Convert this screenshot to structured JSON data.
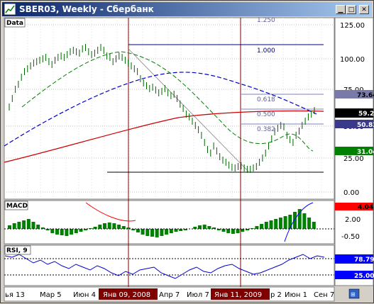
{
  "window": {
    "title": "SBER03, Weekly - Сбербанк",
    "icon": "chart-app-icon",
    "buttons": [
      "minimize",
      "maximize",
      "close"
    ]
  },
  "price_pane": {
    "label": "Data",
    "y_ticks": [
      "125.00",
      "100.00",
      "75.00",
      "50.00",
      "25.00",
      "0.00"
    ],
    "badges": [
      {
        "text": "73.64",
        "bg": "#7a7aa8",
        "fg": "#000000"
      },
      {
        "text": "59.20",
        "bg": "#000000",
        "fg": "#ffffff"
      },
      {
        "text": "50.83",
        "bg": "#3a3a8a",
        "fg": "#ffffff"
      },
      {
        "text": "31.04",
        "bg": "#008000",
        "fg": "#ffffff"
      }
    ],
    "fib_labels": [
      "1.250",
      "1.000",
      "0.618",
      "0.500",
      "0.382"
    ]
  },
  "macd_pane": {
    "label": "MACD",
    "y_ticks": [
      "2.00",
      "-0.50"
    ],
    "badges": [
      {
        "text": "4.04",
        "bg": "#ff0000",
        "fg": "#000000"
      },
      {
        "text": "2.00",
        "bg": "#d4d0c8",
        "fg": "#000000"
      }
    ]
  },
  "rsi_pane": {
    "label": "RSI, 9",
    "badges": [
      {
        "text": "78.79",
        "bg": "#0000ff",
        "fg": "#ffffff"
      },
      {
        "text": "25.00",
        "bg": "#0000ff",
        "fg": "#ffffff"
      }
    ]
  },
  "x_axis": {
    "labels": [
      {
        "text": "ья 13",
        "highlight": false
      },
      {
        "text": "Мар 5",
        "highlight": false
      },
      {
        "text": "Июн 4",
        "highlight": false
      },
      {
        "text": "Янв 09, 2008",
        "highlight": true
      },
      {
        "text": "Апр 7",
        "highlight": false
      },
      {
        "text": "Июл 7",
        "highlight": false
      },
      {
        "text": "Янв 11, 2009",
        "highlight": true
      },
      {
        "text": "р 2",
        "highlight": false
      },
      {
        "text": "Июн 1",
        "highlight": false
      },
      {
        "text": "Сен 7",
        "highlight": false
      }
    ]
  },
  "colors": {
    "price_bar": "#006400",
    "ma_red": "#cc0000",
    "ma_blue": "#0000cc",
    "ma_green": "#008000",
    "cursor_line": "#800000",
    "macd_hist": "#008000"
  }
}
